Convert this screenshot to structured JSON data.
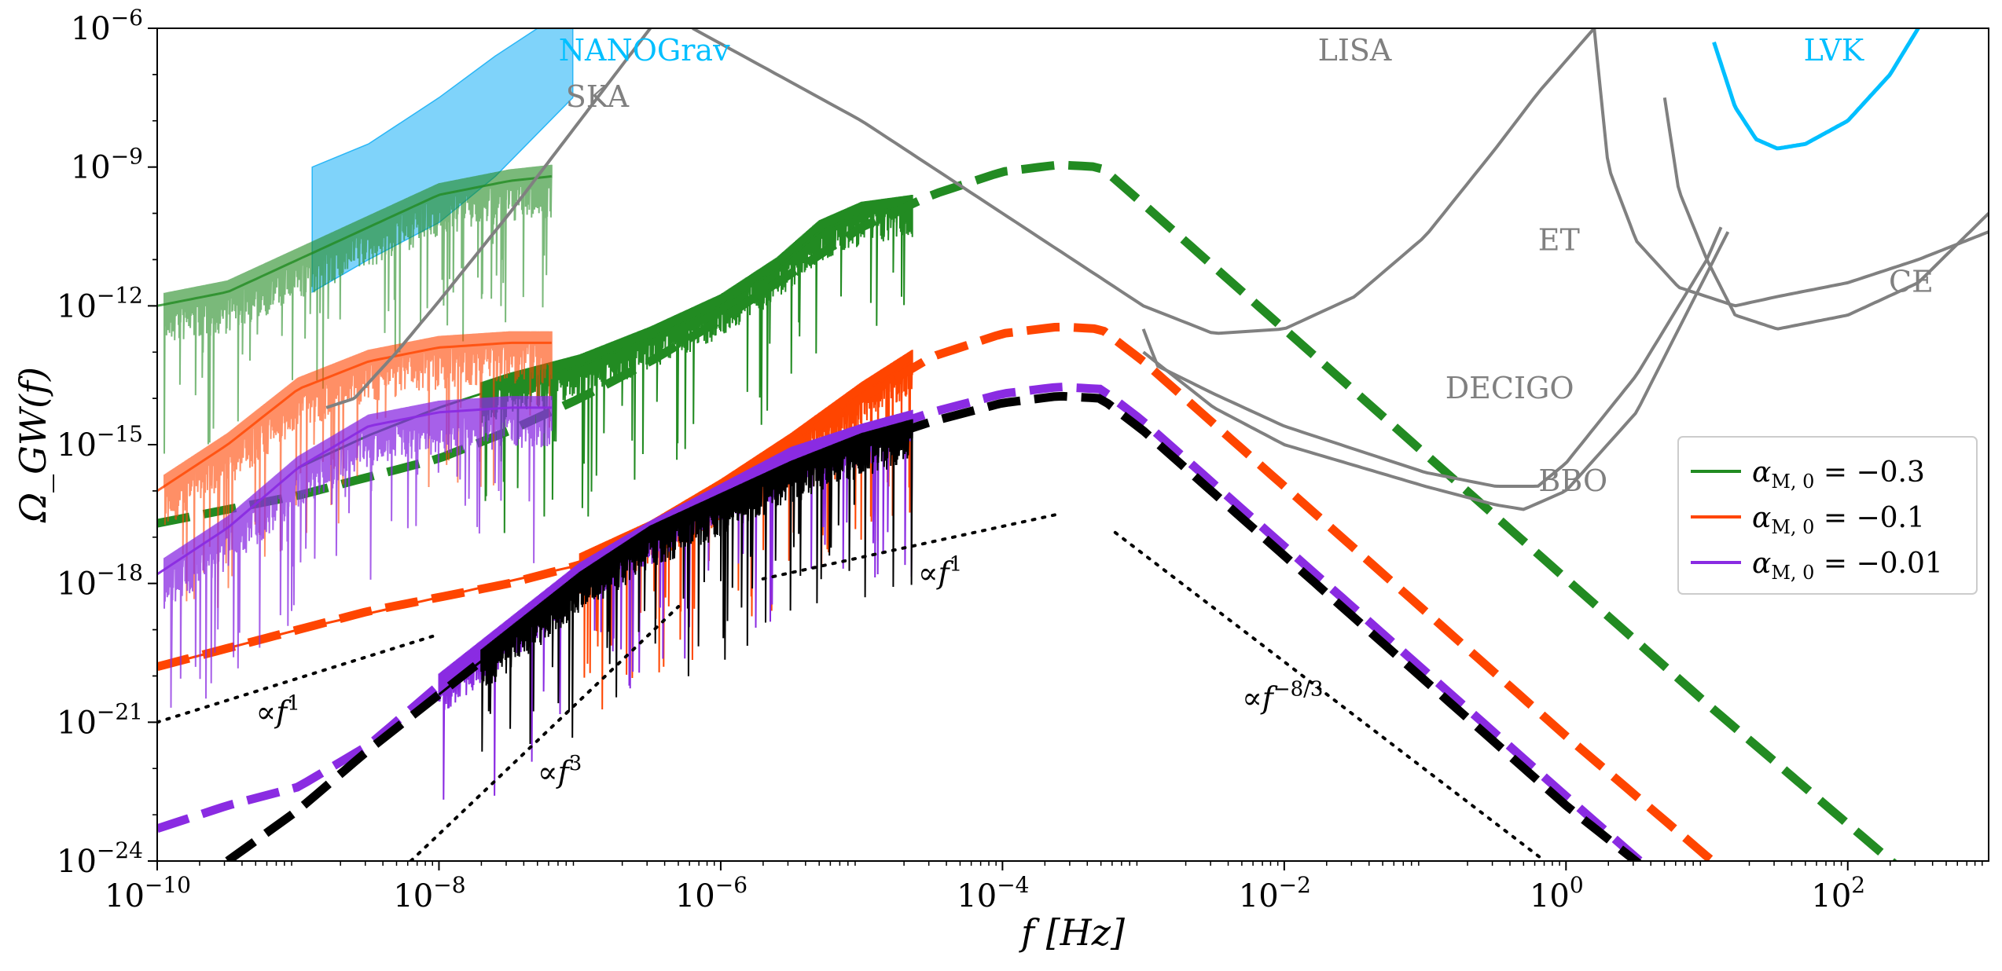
{
  "chart_data": {
    "type": "line",
    "title": "",
    "xlabel": "f [Hz]",
    "ylabel": "Ω_GW(f)",
    "x_scale": "log",
    "y_scale": "log",
    "xlim_exp": [
      -10,
      3
    ],
    "ylim_exp": [
      -24,
      -6
    ],
    "x_tick_exps": [
      -10,
      -8,
      -6,
      -4,
      -2,
      0,
      2
    ],
    "y_tick_exps": [
      -24,
      -21,
      -18,
      -15,
      -12,
      -9,
      -6
    ],
    "grid": false,
    "legend_position": "center-right",
    "legend": [
      {
        "label": "α_M,0 = −0.3",
        "base": "α",
        "sub": "M, 0",
        "value": " = −0.3",
        "color": "#228B22"
      },
      {
        "label": "α_M,0 = −0.1",
        "base": "α",
        "sub": "M, 0",
        "value": " = −0.1",
        "color": "#FF4500"
      },
      {
        "label": "α_M,0 = −0.01",
        "base": "α",
        "sub": "M, 0",
        "value": " = −0.01",
        "color": "#8A2BE2"
      }
    ],
    "series": [
      {
        "name": "α_M,0 = −0.3",
        "color": "#228B22",
        "analytic_dashed": [
          [
            -10,
            -16.7
          ],
          [
            -9,
            -16.1
          ],
          [
            -8.5,
            -15.7
          ],
          [
            -8,
            -15.3
          ],
          [
            -7.5,
            -14.7
          ],
          [
            -7,
            -14.0
          ],
          [
            -6.5,
            -13.2
          ],
          [
            -6,
            -12.3
          ],
          [
            -5.5,
            -11.3
          ],
          [
            -5,
            -10.3
          ],
          [
            -4.5,
            -9.6
          ],
          [
            -4,
            -9.1
          ],
          [
            -3.6,
            -8.95
          ],
          [
            -3.3,
            -9.0
          ],
          [
            -3,
            -9.8
          ],
          [
            -2,
            -12.5
          ],
          [
            -1,
            -15.2
          ],
          [
            0,
            -17.9
          ],
          [
            1,
            -20.6
          ],
          [
            2,
            -23.2
          ],
          [
            2.5,
            -24.5
          ]
        ],
        "pta_band_center": [
          [
            -10,
            -12.0
          ],
          [
            -9.5,
            -11.7
          ],
          [
            -9,
            -11.0
          ],
          [
            -8.5,
            -10.3
          ],
          [
            -8,
            -9.6
          ],
          [
            -7.5,
            -9.3
          ],
          [
            -7.2,
            -9.2
          ]
        ],
        "pta_band_xrange": [
          -9.95,
          -7.2
        ],
        "pta_band_alpha": 0.6,
        "mid_band_center": [
          [
            -9.0,
            -15.5
          ],
          [
            -8.5,
            -14.8
          ],
          [
            -8,
            -14.2
          ],
          [
            -7.5,
            -13.7
          ],
          [
            -7,
            -13.3
          ],
          [
            -6.5,
            -12.7
          ],
          [
            -6,
            -12.0
          ],
          [
            -5.6,
            -11.2
          ],
          [
            -5.3,
            -10.4
          ],
          [
            -5.0,
            -10.0
          ],
          [
            -4.64,
            -9.85
          ]
        ],
        "mid_band_xrange": [
          -7.7,
          -4.64
        ]
      },
      {
        "name": "α_M,0 = −0.1",
        "color": "#FF4500",
        "analytic_dashed": [
          [
            -10,
            -19.8
          ],
          [
            -9.5,
            -19.4
          ],
          [
            -9,
            -19.0
          ],
          [
            -8.5,
            -18.6
          ],
          [
            -8,
            -18.3
          ],
          [
            -7.5,
            -18.0
          ],
          [
            -7,
            -17.6
          ],
          [
            -6.5,
            -16.9
          ],
          [
            -6,
            -16.0
          ],
          [
            -5.5,
            -15.0
          ],
          [
            -5,
            -14.0
          ],
          [
            -4.5,
            -13.1
          ],
          [
            -4,
            -12.6
          ],
          [
            -3.6,
            -12.45
          ],
          [
            -3.3,
            -12.5
          ],
          [
            -3,
            -13.2
          ],
          [
            -2,
            -15.9
          ],
          [
            -1,
            -18.6
          ],
          [
            0,
            -21.3
          ],
          [
            1,
            -23.9
          ],
          [
            1.2,
            -24.4
          ]
        ],
        "pta_band_center": [
          [
            -10,
            -16.0
          ],
          [
            -9.5,
            -15.0
          ],
          [
            -9,
            -13.8
          ],
          [
            -8.5,
            -13.2
          ],
          [
            -8,
            -12.9
          ],
          [
            -7.5,
            -12.8
          ],
          [
            -7.2,
            -12.8
          ]
        ],
        "pta_band_xrange": [
          -9.95,
          -7.2
        ],
        "pta_band_alpha": 0.6,
        "mid_band_center": [
          [
            -10,
            -19.8
          ],
          [
            -9,
            -19.0
          ],
          [
            -8,
            -18.3
          ],
          [
            -7,
            -17.6
          ],
          [
            -6.5,
            -16.9
          ],
          [
            -6,
            -16.0
          ],
          [
            -5.5,
            -15.0
          ],
          [
            -5,
            -13.9
          ],
          [
            -4.64,
            -13.2
          ]
        ],
        "mid_band_xrange": [
          -7.0,
          -4.64
        ]
      },
      {
        "name": "α_M,0 = −0.01",
        "color": "#8A2BE2",
        "analytic_dashed": [
          [
            -10,
            -23.3
          ],
          [
            -9.5,
            -22.8
          ],
          [
            -9,
            -22.4
          ],
          [
            -8.5,
            -21.5
          ],
          [
            -8,
            -20.2
          ],
          [
            -7.5,
            -19.0
          ],
          [
            -7,
            -17.8
          ],
          [
            -6.5,
            -16.9
          ],
          [
            -6,
            -16.0
          ],
          [
            -5.5,
            -15.3
          ],
          [
            -5,
            -14.8
          ],
          [
            -4.5,
            -14.3
          ],
          [
            -4,
            -13.9
          ],
          [
            -3.6,
            -13.75
          ],
          [
            -3.3,
            -13.8
          ],
          [
            -3,
            -14.5
          ],
          [
            -2,
            -17.2
          ],
          [
            -1,
            -19.9
          ],
          [
            0,
            -22.6
          ],
          [
            0.6,
            -24.2
          ]
        ],
        "pta_band_center": [
          [
            -10,
            -17.8
          ],
          [
            -9.5,
            -16.8
          ],
          [
            -9,
            -15.5
          ],
          [
            -8.5,
            -14.6
          ],
          [
            -8,
            -14.3
          ],
          [
            -7.5,
            -14.2
          ],
          [
            -7.2,
            -14.2
          ]
        ],
        "pta_band_xrange": [
          -9.95,
          -7.2
        ],
        "pta_band_alpha": 0.75,
        "mid_band_center": [
          [
            -8,
            -20.2
          ],
          [
            -7.5,
            -19.0
          ],
          [
            -7,
            -17.8
          ],
          [
            -6.5,
            -16.9
          ],
          [
            -6,
            -16.1
          ],
          [
            -5.5,
            -15.3
          ],
          [
            -5,
            -14.8
          ],
          [
            -4.64,
            -14.5
          ]
        ],
        "mid_band_xrange": [
          -8.0,
          -4.64
        ]
      },
      {
        "name": "",
        "color": "#000000",
        "analytic_dashed": [
          [
            -9.5,
            -24.0
          ],
          [
            -9,
            -22.9
          ],
          [
            -8.5,
            -21.6
          ],
          [
            -8,
            -20.4
          ],
          [
            -7.5,
            -19.2
          ],
          [
            -7,
            -18.0
          ],
          [
            -6.5,
            -17.0
          ],
          [
            -6,
            -16.2
          ],
          [
            -5.5,
            -15.5
          ],
          [
            -5,
            -15.0
          ],
          [
            -4.5,
            -14.5
          ],
          [
            -4,
            -14.1
          ],
          [
            -3.6,
            -13.95
          ],
          [
            -3.3,
            -14.0
          ],
          [
            -3,
            -14.7
          ],
          [
            -2,
            -17.4
          ],
          [
            -1,
            -20.1
          ],
          [
            0,
            -22.8
          ],
          [
            0.7,
            -24.5
          ]
        ],
        "mid_band_center": [
          [
            -8,
            -20.4
          ],
          [
            -7.5,
            -19.2
          ],
          [
            -7,
            -18.0
          ],
          [
            -6.5,
            -17.0
          ],
          [
            -6,
            -16.3
          ],
          [
            -5.5,
            -15.6
          ],
          [
            -5,
            -15.0
          ],
          [
            -4.64,
            -14.7
          ]
        ],
        "mid_band_xrange": [
          -7.7,
          -4.64
        ]
      }
    ],
    "detectors": [
      {
        "name": "NANOGrav",
        "color": "#00BFFF",
        "type": "band"
      },
      {
        "name": "SKA",
        "color": "#808080",
        "type": "curve",
        "points": [
          [
            -8.8,
            -14.2
          ],
          [
            -8.6,
            -14.0
          ],
          [
            -8.3,
            -13.0
          ],
          [
            -8.0,
            -11.9
          ],
          [
            -7.5,
            -10.0
          ],
          [
            -7.0,
            -8.0
          ],
          [
            -6.5,
            -6.0
          ]
        ]
      },
      {
        "name": "LISA",
        "color": "#808080",
        "type": "curve",
        "points": [
          [
            -6.2,
            -6.0
          ],
          [
            -5,
            -8.0
          ],
          [
            -4,
            -10.0
          ],
          [
            -3,
            -12.0
          ],
          [
            -2.5,
            -12.6
          ],
          [
            -2,
            -12.5
          ],
          [
            -1.5,
            -11.8
          ],
          [
            -1,
            -10.5
          ],
          [
            -0.5,
            -8.6
          ],
          [
            -0.2,
            -7.4
          ],
          [
            0.2,
            -6.0
          ]
        ]
      },
      {
        "name": "ET",
        "color": "#808080",
        "type": "curve",
        "points": [
          [
            0.2,
            -6.0
          ],
          [
            0.3,
            -9.0
          ],
          [
            0.5,
            -10.6
          ],
          [
            0.8,
            -11.6
          ],
          [
            1.2,
            -12.0
          ],
          [
            1.5,
            -11.8
          ],
          [
            2,
            -11.5
          ],
          [
            2.5,
            -11.0
          ],
          [
            3,
            -10.4
          ]
        ]
      },
      {
        "name": "CE",
        "color": "#808080",
        "type": "curve",
        "points": [
          [
            0.7,
            -7.5
          ],
          [
            0.8,
            -9.5
          ],
          [
            1.0,
            -11.0
          ],
          [
            1.2,
            -12.2
          ],
          [
            1.5,
            -12.5
          ],
          [
            2,
            -12.2
          ],
          [
            2.5,
            -11.5
          ],
          [
            3,
            -10.0
          ]
        ]
      },
      {
        "name": "DECIGO",
        "color": "#808080",
        "type": "curve",
        "points": [
          [
            -3.0,
            -12.5
          ],
          [
            -2.9,
            -13.3
          ],
          [
            -2.5,
            -13.9
          ],
          [
            -2,
            -14.6
          ],
          [
            -1,
            -15.6
          ],
          [
            -0.5,
            -15.9
          ],
          [
            -0.2,
            -15.9
          ],
          [
            0,
            -15.4
          ],
          [
            0.5,
            -13.5
          ],
          [
            1,
            -11.0
          ],
          [
            1.1,
            -10.3
          ]
        ]
      },
      {
        "name": "BBO",
        "color": "#808080",
        "type": "curve",
        "points": [
          [
            -3.0,
            -13.0
          ],
          [
            -2.5,
            -14.2
          ],
          [
            -2,
            -15.0
          ],
          [
            -1,
            -15.9
          ],
          [
            -0.5,
            -16.3
          ],
          [
            -0.3,
            -16.4
          ],
          [
            0,
            -16.0
          ],
          [
            0.5,
            -14.3
          ],
          [
            1.0,
            -11.3
          ],
          [
            1.15,
            -10.4
          ]
        ]
      },
      {
        "name": "LVK",
        "color": "#00BFFF",
        "type": "curve",
        "points": [
          [
            1.05,
            -6.3
          ],
          [
            1.2,
            -7.7
          ],
          [
            1.35,
            -8.4
          ],
          [
            1.5,
            -8.6
          ],
          [
            1.7,
            -8.5
          ],
          [
            2,
            -8.0
          ],
          [
            2.3,
            -7.0
          ],
          [
            2.5,
            -6.0
          ]
        ]
      }
    ],
    "nanograv_band": {
      "lower": [
        [
          -8.9,
          -11.7
        ],
        [
          -8.5,
          -11.0
        ],
        [
          -8,
          -10.2
        ],
        [
          -7.6,
          -9.2
        ],
        [
          -7.05,
          -7.5
        ]
      ],
      "upper": [
        [
          -8.9,
          -9.0
        ],
        [
          -8.5,
          -8.5
        ],
        [
          -8,
          -7.5
        ],
        [
          -7.6,
          -6.6
        ],
        [
          -7.3,
          -6.0
        ],
        [
          -7.05,
          -6.0
        ]
      ]
    },
    "slope_guides": [
      {
        "label_base": "∝f",
        "label_exp": "1",
        "points": [
          [
            -10,
            -21.0
          ],
          [
            -8,
            -19.1
          ]
        ],
        "label_at": [
          -9.3,
          -21.0
        ]
      },
      {
        "label_base": "∝f",
        "label_exp": "3",
        "points": [
          [
            -8.2,
            -24.0
          ],
          [
            -6.3,
            -18.5
          ]
        ],
        "label_at": [
          -7.3,
          -22.3
        ]
      },
      {
        "label_base": "∝f",
        "label_exp": "1",
        "points": [
          [
            -5.7,
            -17.9
          ],
          [
            -3.6,
            -16.5
          ]
        ],
        "label_at": [
          -4.6,
          -18.0
        ]
      },
      {
        "label_base": "∝f",
        "label_exp": "−8/3",
        "points": [
          [
            -3.2,
            -16.9
          ],
          [
            -0.15,
            -24.0
          ]
        ],
        "label_at": [
          -2.3,
          -20.7
        ]
      }
    ]
  }
}
